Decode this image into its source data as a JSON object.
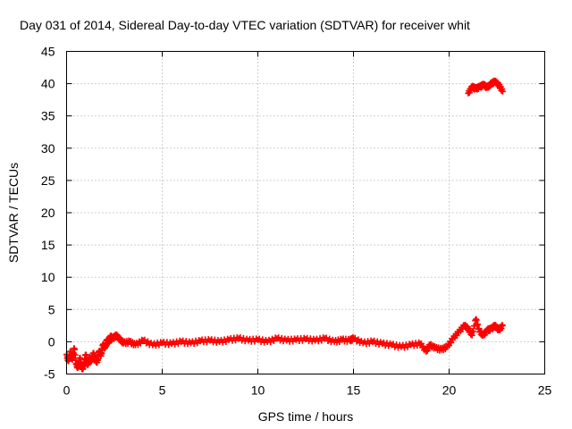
{
  "chart_data": {
    "type": "scatter",
    "title": "Day 031 of 2014, Sidereal Day-to-day VTEC variation (SDTVAR) for receiver whit",
    "xlabel": "GPS time / hours",
    "ylabel": "SDTVAR / TECUs",
    "xlim": [
      0,
      25
    ],
    "ylim": [
      -5,
      45
    ],
    "x_ticks": [
      "0",
      "5",
      "10",
      "15",
      "20",
      "25"
    ],
    "y_ticks": [
      "-5",
      "0",
      "5",
      "10",
      "15",
      "20",
      "25",
      "30",
      "35",
      "40",
      "45"
    ],
    "grid": true,
    "marker": "plus",
    "series": [
      {
        "name": "SDTVAR",
        "color": "#ff0000",
        "x": [
          0.0,
          0.1,
          0.2,
          0.3,
          0.4,
          0.5,
          0.6,
          0.7,
          0.8,
          0.9,
          1.0,
          1.1,
          1.2,
          1.3,
          1.4,
          1.5,
          1.6,
          1.7,
          1.8,
          1.9,
          2.0,
          2.1,
          2.2,
          2.3,
          2.4,
          2.6,
          2.8,
          3.0,
          3.3,
          3.6,
          4.0,
          4.5,
          5.0,
          5.5,
          6.0,
          6.5,
          7.0,
          7.5,
          8.0,
          8.5,
          9.0,
          9.5,
          10.0,
          10.5,
          11.0,
          11.5,
          12.0,
          12.5,
          13.0,
          13.5,
          14.0,
          14.4,
          14.8,
          15.0,
          15.5,
          16.0,
          16.5,
          17.0,
          17.5,
          18.0,
          18.5,
          18.8,
          19.0,
          19.3,
          19.6,
          19.9,
          20.2,
          20.5,
          20.8,
          21.0,
          21.2,
          21.4,
          21.6,
          21.8,
          22.0,
          22.2,
          22.4,
          22.6,
          22.8,
          21.0,
          21.2,
          21.4,
          21.6,
          21.8,
          22.0,
          22.2,
          22.4,
          22.6,
          22.8
        ],
        "y": [
          -2.0,
          -3.0,
          -1.5,
          -2.8,
          -1.0,
          -3.5,
          -4.0,
          -2.5,
          -4.2,
          -3.8,
          -2.0,
          -3.6,
          -2.5,
          -3.0,
          -1.8,
          -2.7,
          -3.2,
          -1.5,
          -2.2,
          -0.5,
          -1.0,
          0.2,
          -0.2,
          0.8,
          0.5,
          1.0,
          0.3,
          -0.2,
          0.0,
          -0.5,
          0.2,
          -0.5,
          -0.2,
          -0.3,
          0.0,
          -0.2,
          0.1,
          0.2,
          0.0,
          0.3,
          0.5,
          0.2,
          0.3,
          0.0,
          0.5,
          0.2,
          0.3,
          0.4,
          0.2,
          0.5,
          0.0,
          0.3,
          0.2,
          0.5,
          -0.2,
          0.0,
          -0.3,
          -0.5,
          -0.8,
          -0.5,
          -0.3,
          -1.5,
          -0.5,
          -1.0,
          -1.2,
          -0.8,
          0.5,
          1.5,
          2.5,
          2.0,
          1.0,
          3.5,
          1.5,
          1.0,
          1.8,
          2.0,
          2.5,
          1.8,
          2.5,
          38.5,
          39.5,
          39.2,
          39.5,
          39.8,
          39.4,
          40.0,
          40.3,
          39.8,
          38.8
        ]
      }
    ]
  }
}
